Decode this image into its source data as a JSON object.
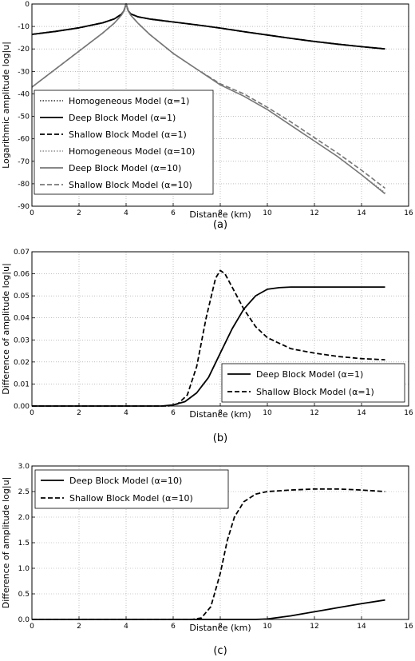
{
  "chart_data": [
    {
      "type": "line",
      "panel_label": "(a)",
      "xlabel": "Distance (km)",
      "ylabel": "Logarithmic amplitude log|u|",
      "xlim": [
        0,
        16
      ],
      "ylim": [
        -90,
        0
      ],
      "xticks": [
        0,
        2,
        4,
        6,
        8,
        10,
        12,
        14,
        16
      ],
      "yticks": [
        0,
        -10,
        -20,
        -30,
        -40,
        -50,
        -60,
        -70,
        -80,
        -90
      ],
      "grid": true,
      "legend_position": "lower-left",
      "series": [
        {
          "name": "Homogeneous Model (α=1)",
          "color": "#000000",
          "style": "dotted",
          "x": [
            0,
            1,
            2,
            3,
            3.5,
            3.8,
            3.9,
            4.0,
            4.1,
            4.2,
            4.5,
            5,
            6,
            7,
            8,
            9,
            10,
            11,
            12,
            13,
            14,
            15
          ],
          "y": [
            -13.5,
            -12.2,
            -10.6,
            -8.4,
            -6.6,
            -4.6,
            -3.2,
            0,
            -3.2,
            -4.4,
            -5.7,
            -6.7,
            -8.0,
            -9.3,
            -10.7,
            -12.3,
            -13.8,
            -15.3,
            -16.7,
            -17.9,
            -19.0,
            -20.0
          ]
        },
        {
          "name": "Deep Block Model (α=1)",
          "color": "#000000",
          "style": "solid",
          "x": [
            0,
            1,
            2,
            3,
            3.5,
            3.8,
            3.9,
            4.0,
            4.1,
            4.2,
            4.5,
            5,
            6,
            7,
            8,
            9,
            10,
            11,
            12,
            13,
            14,
            15
          ],
          "y": [
            -13.5,
            -12.2,
            -10.6,
            -8.4,
            -6.6,
            -4.6,
            -3.2,
            0,
            -3.2,
            -4.4,
            -5.7,
            -6.7,
            -8.0,
            -9.3,
            -10.7,
            -12.3,
            -13.8,
            -15.3,
            -16.7,
            -17.9,
            -19.0,
            -20.0
          ]
        },
        {
          "name": "Shallow Block Model (α=1)",
          "color": "#000000",
          "style": "dashed",
          "x": [
            0,
            1,
            2,
            3,
            3.5,
            3.8,
            3.9,
            4.0,
            4.1,
            4.2,
            4.5,
            5,
            6,
            7,
            8,
            9,
            10,
            11,
            12,
            13,
            14,
            15
          ],
          "y": [
            -13.5,
            -12.2,
            -10.6,
            -8.4,
            -6.6,
            -4.6,
            -3.2,
            0,
            -3.2,
            -4.4,
            -5.7,
            -6.7,
            -8.0,
            -9.3,
            -10.7,
            -12.3,
            -13.8,
            -15.3,
            -16.7,
            -17.9,
            -19.0,
            -20.0
          ]
        },
        {
          "name": "Homogeneous Model (α=10)",
          "color": "#777777",
          "style": "dotted",
          "x": [
            0,
            1,
            2,
            3,
            3.5,
            3.8,
            3.9,
            4.0,
            4.1,
            4.2,
            4.5,
            5,
            6,
            7,
            8,
            9,
            10,
            11,
            12,
            13,
            14,
            15
          ],
          "y": [
            -37,
            -29,
            -21,
            -13,
            -8.5,
            -5,
            -3.2,
            0,
            -3.2,
            -5,
            -8.5,
            -13.5,
            -22,
            -29,
            -36,
            -41,
            -47,
            -54,
            -61,
            -68,
            -76,
            -84
          ]
        },
        {
          "name": "Deep Block Model (α=10)",
          "color": "#777777",
          "style": "solid",
          "x": [
            0,
            1,
            2,
            3,
            3.5,
            3.8,
            3.9,
            4.0,
            4.1,
            4.2,
            4.5,
            5,
            6,
            7,
            8,
            9,
            10,
            11,
            12,
            13,
            14,
            15
          ],
          "y": [
            -37,
            -29,
            -21,
            -13,
            -8.5,
            -5,
            -3.2,
            0,
            -3.2,
            -5,
            -8.5,
            -13.5,
            -22,
            -29,
            -36,
            -41,
            -47,
            -54,
            -61,
            -68,
            -76,
            -84.5
          ]
        },
        {
          "name": "Shallow Block Model (α=10)",
          "color": "#777777",
          "style": "dashed",
          "x": [
            0,
            1,
            2,
            3,
            3.5,
            3.8,
            3.9,
            4.0,
            4.1,
            4.2,
            4.5,
            5,
            6,
            7,
            8,
            9,
            10,
            11,
            12,
            13,
            14,
            15
          ],
          "y": [
            -37,
            -29,
            -21,
            -13,
            -8.5,
            -5,
            -3.2,
            0,
            -3.2,
            -5,
            -8.5,
            -13.5,
            -22,
            -29,
            -35.5,
            -40,
            -46,
            -52.5,
            -59.5,
            -66.5,
            -74,
            -82
          ]
        }
      ]
    },
    {
      "type": "line",
      "panel_label": "(b)",
      "xlabel": "Distance (km)",
      "ylabel": "Difference of amplitude log|u|",
      "xlim": [
        0,
        16
      ],
      "ylim": [
        0,
        0.07
      ],
      "xticks": [
        0,
        2,
        4,
        6,
        8,
        10,
        12,
        14,
        16
      ],
      "yticks": [
        0.0,
        0.01,
        0.02,
        0.03,
        0.04,
        0.05,
        0.06,
        0.07
      ],
      "ytick_labels": [
        "0.00",
        "0.01",
        "0.02",
        "0.03",
        "0.04",
        "0.05",
        "0.06",
        "0.07"
      ],
      "grid": true,
      "legend_position": "lower-right",
      "series": [
        {
          "name": "Deep Block Model (α=1)",
          "color": "#000000",
          "style": "solid",
          "x": [
            0,
            5.5,
            6,
            6.5,
            7,
            7.5,
            8,
            8.5,
            9,
            9.5,
            10,
            10.5,
            11,
            12,
            13,
            15
          ],
          "y": [
            0,
            0,
            0.0005,
            0.002,
            0.006,
            0.013,
            0.024,
            0.035,
            0.044,
            0.05,
            0.053,
            0.0537,
            0.054,
            0.054,
            0.054,
            0.054
          ]
        },
        {
          "name": "Shallow Block Model (α=1)",
          "color": "#000000",
          "style": "dashed",
          "x": [
            0,
            5.8,
            6.2,
            6.6,
            7,
            7.4,
            7.8,
            8.0,
            8.2,
            8.5,
            9,
            9.5,
            10,
            11,
            12,
            13,
            14,
            15
          ],
          "y": [
            0,
            0,
            0.001,
            0.005,
            0.018,
            0.04,
            0.058,
            0.0615,
            0.06,
            0.054,
            0.044,
            0.036,
            0.031,
            0.026,
            0.024,
            0.0225,
            0.0215,
            0.021
          ]
        }
      ]
    },
    {
      "type": "line",
      "panel_label": "(c)",
      "xlabel": "Distance (km)",
      "ylabel": "Difference of amplitude log|u|",
      "xlim": [
        0,
        16
      ],
      "ylim": [
        0,
        3.0
      ],
      "xticks": [
        0,
        2,
        4,
        6,
        8,
        10,
        12,
        14,
        16
      ],
      "yticks": [
        0.0,
        0.5,
        1.0,
        1.5,
        2.0,
        2.5,
        3.0
      ],
      "ytick_labels": [
        "0.0",
        "0.5",
        "1.0",
        "1.5",
        "2.0",
        "2.5",
        "3.0"
      ],
      "grid": true,
      "legend_position": "upper-left",
      "series": [
        {
          "name": "Deep Block Model (α=10)",
          "color": "#000000",
          "style": "solid",
          "x": [
            0,
            9.5,
            10,
            11,
            12,
            13,
            14,
            15
          ],
          "y": [
            0,
            0,
            0.01,
            0.07,
            0.15,
            0.23,
            0.31,
            0.38
          ]
        },
        {
          "name": "Shallow Block Model (α=10)",
          "color": "#000000",
          "style": "dashed",
          "x": [
            0,
            6.8,
            7.2,
            7.6,
            8.0,
            8.3,
            8.6,
            9.0,
            9.5,
            10,
            11,
            12,
            13,
            14,
            15
          ],
          "y": [
            0,
            0,
            0.03,
            0.25,
            0.9,
            1.55,
            2.0,
            2.3,
            2.45,
            2.5,
            2.53,
            2.55,
            2.55,
            2.53,
            2.5
          ]
        }
      ]
    }
  ]
}
